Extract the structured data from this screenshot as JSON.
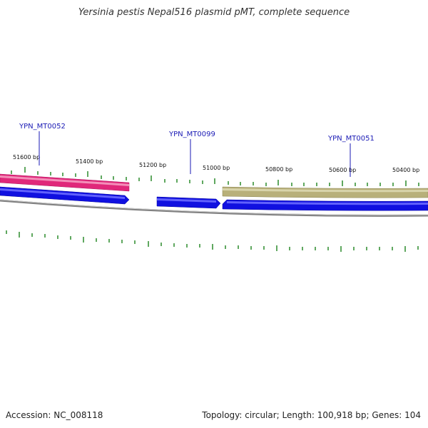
{
  "title": "Yersinia pestis Nepal516 plasmid pMT, complete sequence",
  "footer": {
    "accession": "Accession: NC_008118",
    "summary": "Topology: circular; Length: 100,918 bp; Genes: 104"
  },
  "scale": {
    "unit_labels": [
      "51600 bp",
      "51400 bp",
      "51200 bp",
      "51000 bp",
      "50800 bp",
      "50600 bp",
      "50400 bp"
    ]
  },
  "genes": [
    {
      "label": "YPN_MT0052",
      "color": "#e0287a"
    },
    {
      "label": "YPN_MT0099",
      "color": "#1010e0"
    },
    {
      "label": "YPN_MT0051",
      "color": "#b8b07a"
    }
  ],
  "colors": {
    "forward_gene": "#e0287a",
    "reverse_gene": "#1010e0",
    "other_gene": "#b8b07a",
    "backbone": "#808080",
    "ticks": "#2a8a2a",
    "label_line": "#1a1ab5"
  }
}
